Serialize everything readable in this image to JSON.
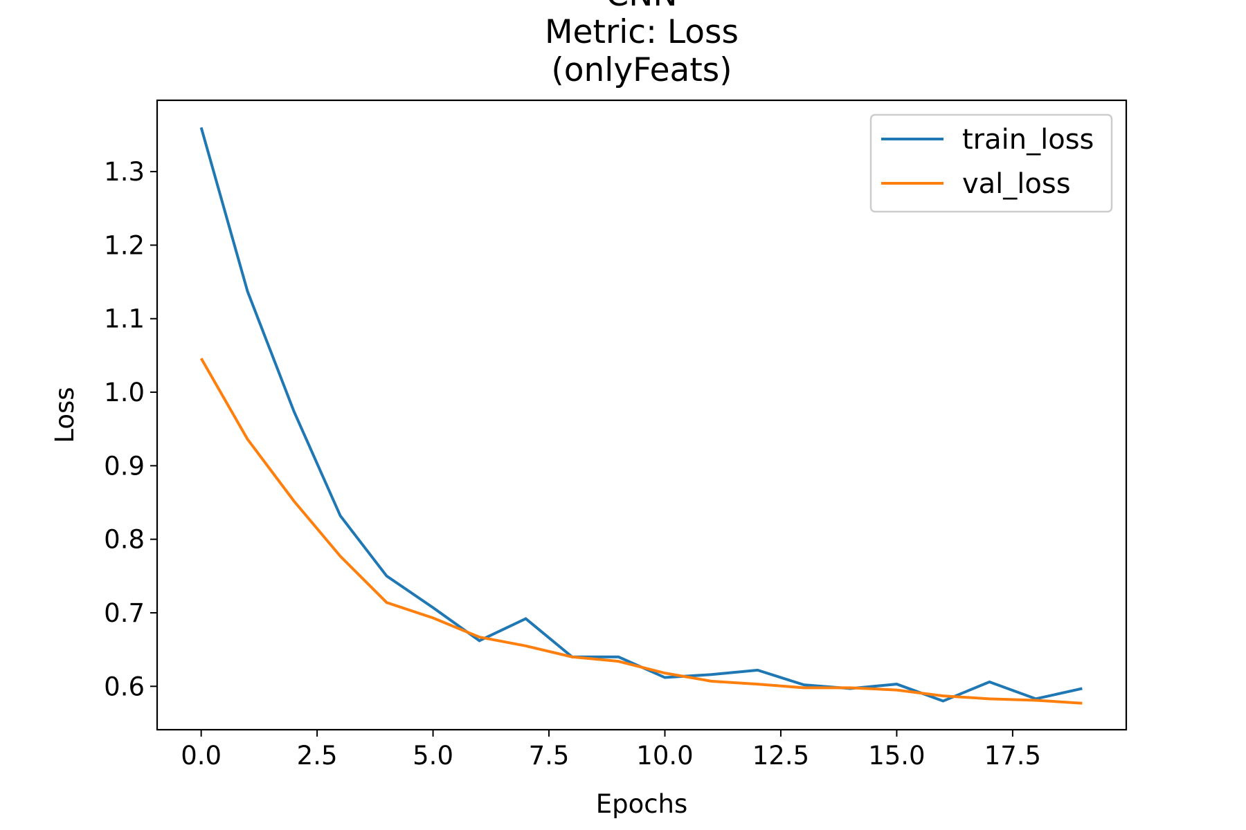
{
  "chart_data": {
    "type": "line",
    "title_lines": [
      "CNN",
      "Metric: Loss",
      "(onlyFeats)"
    ],
    "xlabel": "Epochs",
    "ylabel": "Loss",
    "xlim": [
      -0.95,
      19.95
    ],
    "ylim": [
      0.541,
      1.397
    ],
    "xticks": [
      0,
      2.5,
      5,
      7.5,
      10,
      12.5,
      15,
      17.5
    ],
    "xtick_labels": [
      "0.0",
      "2.5",
      "5.0",
      "7.5",
      "10.0",
      "12.5",
      "15.0",
      "17.5"
    ],
    "yticks": [
      0.6,
      0.7,
      0.8,
      0.9,
      1.0,
      1.1,
      1.2,
      1.3
    ],
    "ytick_labels": [
      "0.6",
      "0.7",
      "0.8",
      "0.9",
      "1.0",
      "1.1",
      "1.2",
      "1.3"
    ],
    "grid": false,
    "legend_position": "top-right",
    "x": [
      0,
      1,
      2,
      3,
      4,
      5,
      6,
      7,
      8,
      9,
      10,
      11,
      12,
      13,
      14,
      15,
      16,
      17,
      18,
      19
    ],
    "series": [
      {
        "name": "train_loss",
        "color": "#1f77b4",
        "values": [
          1.36,
          1.137,
          0.974,
          0.832,
          0.75,
          0.707,
          0.662,
          0.692,
          0.64,
          0.64,
          0.612,
          0.616,
          0.622,
          0.602,
          0.597,
          0.603,
          0.58,
          0.606,
          0.583,
          0.597
        ]
      },
      {
        "name": "val_loss",
        "color": "#ff7f0e",
        "values": [
          1.046,
          0.936,
          0.852,
          0.777,
          0.714,
          0.693,
          0.667,
          0.655,
          0.64,
          0.634,
          0.618,
          0.607,
          0.603,
          0.598,
          0.598,
          0.595,
          0.587,
          0.583,
          0.581,
          0.577
        ]
      }
    ]
  }
}
